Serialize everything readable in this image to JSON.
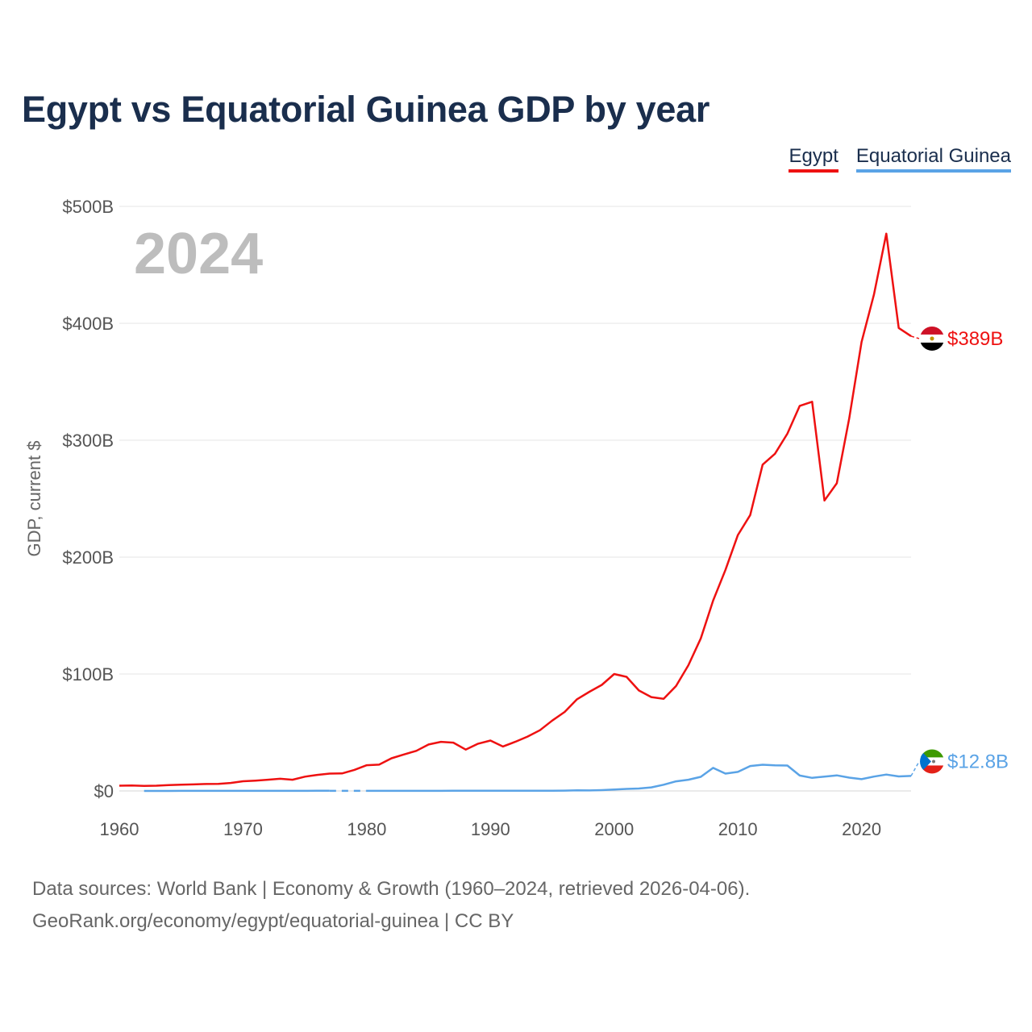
{
  "title": "Egypt vs Equatorial Guinea GDP by year",
  "legend": [
    {
      "name": "Egypt",
      "color": "#ee1111"
    },
    {
      "name": "Equatorial Guinea",
      "color": "#5aa3e6"
    }
  ],
  "footer": {
    "line1": "Data sources: World Bank | Economy & Growth (1960–2024, retrieved 2026-04-06).",
    "line2": "GeoRank.org/economy/egypt/equatorial-guinea | CC BY"
  },
  "chart_data": {
    "type": "line",
    "title": "Egypt vs Equatorial Guinea GDP by year",
    "xlabel": "",
    "ylabel": "GDP, current $",
    "year_watermark": "2024",
    "xlim": [
      1960,
      2024
    ],
    "ylim": [
      0,
      500
    ],
    "unit": "billion current US$",
    "x_ticks": [
      1960,
      1970,
      1980,
      1990,
      2000,
      2010,
      2020
    ],
    "x_tick_labels": [
      "1960",
      "1970",
      "1980",
      "1990",
      "2000",
      "2010",
      "2020"
    ],
    "y_ticks": [
      0,
      100,
      200,
      300,
      400,
      500
    ],
    "y_tick_labels": [
      "$0",
      "$100B",
      "$200B",
      "$300B",
      "$400B",
      "$500B"
    ],
    "grid": true,
    "legend_position": "top-right",
    "series": [
      {
        "name": "Egypt",
        "color": "#ee1111",
        "end_label": "$389B",
        "x": [
          1960,
          1961,
          1962,
          1963,
          1964,
          1965,
          1966,
          1967,
          1968,
          1969,
          1970,
          1971,
          1972,
          1973,
          1974,
          1975,
          1976,
          1977,
          1978,
          1979,
          1980,
          1981,
          1982,
          1983,
          1984,
          1985,
          1986,
          1987,
          1988,
          1989,
          1990,
          1991,
          1992,
          1993,
          1994,
          1995,
          1996,
          1997,
          1998,
          1999,
          2000,
          2001,
          2002,
          2003,
          2004,
          2005,
          2006,
          2007,
          2008,
          2009,
          2010,
          2011,
          2012,
          2013,
          2014,
          2015,
          2016,
          2017,
          2018,
          2019,
          2020,
          2021,
          2022,
          2023,
          2024
        ],
        "values": [
          4.5,
          4.6,
          4.3,
          4.5,
          5.0,
          5.3,
          5.6,
          5.9,
          6.1,
          6.8,
          8.3,
          8.8,
          9.6,
          10.4,
          9.6,
          12.2,
          13.7,
          14.8,
          15.0,
          18.0,
          22.0,
          22.5,
          27.9,
          31.2,
          34.3,
          39.7,
          42.0,
          41.3,
          35.4,
          40.4,
          43.1,
          38.0,
          42.0,
          46.5,
          51.9,
          60.2,
          67.6,
          78.4,
          84.8,
          90.7,
          100.0,
          97.6,
          85.9,
          80.3,
          78.8,
          89.7,
          107.5,
          130.5,
          162.8,
          189.1,
          218.9,
          236.0,
          279.1,
          288.4,
          305.6,
          329.4,
          332.9,
          248.4,
          263.2,
          318.7,
          384.0,
          424.7,
          476.7,
          396.0,
          389.0
        ]
      },
      {
        "name": "Equatorial Guinea",
        "color": "#5aa3e6",
        "end_label": "$12.8B",
        "x": [
          1962,
          1963,
          1964,
          1965,
          1966,
          1967,
          1968,
          1969,
          1970,
          1971,
          1972,
          1973,
          1974,
          1975,
          1976,
          1977,
          1980,
          1981,
          1982,
          1983,
          1984,
          1985,
          1986,
          1987,
          1988,
          1989,
          1990,
          1991,
          1992,
          1993,
          1994,
          1995,
          1996,
          1997,
          1998,
          1999,
          2000,
          2001,
          2002,
          2003,
          2004,
          2005,
          2006,
          2007,
          2008,
          2009,
          2010,
          2011,
          2012,
          2013,
          2014,
          2015,
          2016,
          2017,
          2018,
          2019,
          2020,
          2021,
          2022,
          2023,
          2024
        ],
        "values": [
          0.03,
          0.03,
          0.03,
          0.04,
          0.04,
          0.04,
          0.04,
          0.05,
          0.06,
          0.06,
          0.07,
          0.08,
          0.09,
          0.1,
          0.11,
          0.12,
          0.06,
          0.07,
          0.07,
          0.08,
          0.08,
          0.09,
          0.1,
          0.11,
          0.12,
          0.12,
          0.13,
          0.14,
          0.15,
          0.16,
          0.17,
          0.2,
          0.3,
          0.5,
          0.4,
          0.7,
          1.2,
          1.7,
          2.1,
          3.0,
          5.3,
          8.2,
          9.6,
          12.1,
          19.7,
          14.8,
          16.3,
          21.3,
          22.4,
          21.9,
          21.7,
          13.2,
          11.2,
          12.3,
          13.3,
          11.4,
          10.1,
          12.3,
          14.0,
          12.4,
          12.8
        ]
      }
    ]
  }
}
